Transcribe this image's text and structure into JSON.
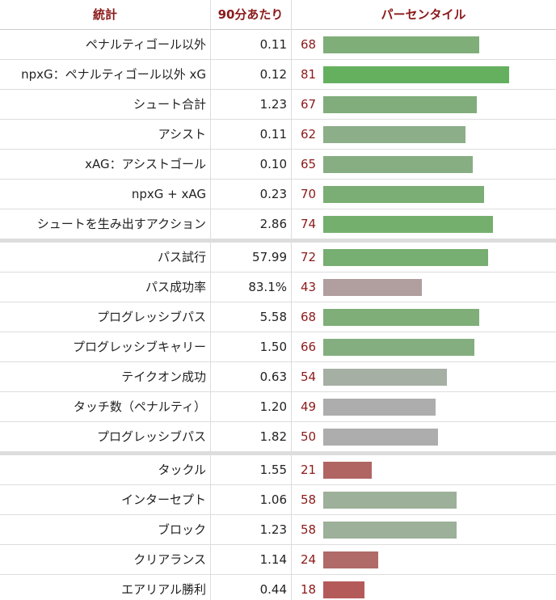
{
  "header": {
    "stat": "統計",
    "per90": "90分あたり",
    "percentile": "パーセンタイル"
  },
  "percentile_max": 100,
  "sections": [
    {
      "rows": [
        {
          "stat": "ペナルティゴール以外",
          "per90": "0.11",
          "percentile": 68,
          "color": "#7fae79"
        },
        {
          "stat": "npxG：ペナルティゴール以外 xG",
          "per90": "0.12",
          "percentile": 81,
          "color": "#64b05f"
        },
        {
          "stat": "シュート合計",
          "per90": "1.23",
          "percentile": 67,
          "color": "#80ad7b"
        },
        {
          "stat": "アシスト",
          "per90": "0.11",
          "percentile": 62,
          "color": "#8cae88"
        },
        {
          "stat": "xAG：アシストゴール",
          "per90": "0.10",
          "percentile": 65,
          "color": "#87ae82"
        },
        {
          "stat": "npxG + xAG",
          "per90": "0.23",
          "percentile": 70,
          "color": "#7aae74"
        },
        {
          "stat": "シュートを生み出すアクション",
          "per90": "2.86",
          "percentile": 74,
          "color": "#74af6e"
        }
      ]
    },
    {
      "rows": [
        {
          "stat": "パス試行",
          "per90": "57.99",
          "percentile": 72,
          "color": "#77ae71"
        },
        {
          "stat": "パス成功率",
          "per90": "83.1%",
          "percentile": 43,
          "color": "#b19e9e"
        },
        {
          "stat": "プログレッシブパス",
          "per90": "5.58",
          "percentile": 68,
          "color": "#7fae79"
        },
        {
          "stat": "プログレッシブキャリー",
          "per90": "1.50",
          "percentile": 66,
          "color": "#84ae7f"
        },
        {
          "stat": "テイクオン成功",
          "per90": "0.63",
          "percentile": 54,
          "color": "#a5afa4"
        },
        {
          "stat": "タッチ数（ペナルティ）",
          "per90": "1.20",
          "percentile": 49,
          "color": "#adadad"
        },
        {
          "stat": "プログレッシブパス",
          "per90": "1.82",
          "percentile": 50,
          "color": "#adadad"
        }
      ]
    },
    {
      "rows": [
        {
          "stat": "タックル",
          "per90": "1.55",
          "percentile": 21,
          "color": "#b06562"
        },
        {
          "stat": "インターセプト",
          "per90": "1.06",
          "percentile": 58,
          "color": "#9db099"
        },
        {
          "stat": "ブロック",
          "per90": "1.23",
          "percentile": 58,
          "color": "#9db099"
        },
        {
          "stat": "クリアランス",
          "per90": "1.14",
          "percentile": 24,
          "color": "#b06a68"
        },
        {
          "stat": "エアリアル勝利",
          "per90": "0.44",
          "percentile": 18,
          "color": "#b45a59"
        }
      ]
    }
  ]
}
